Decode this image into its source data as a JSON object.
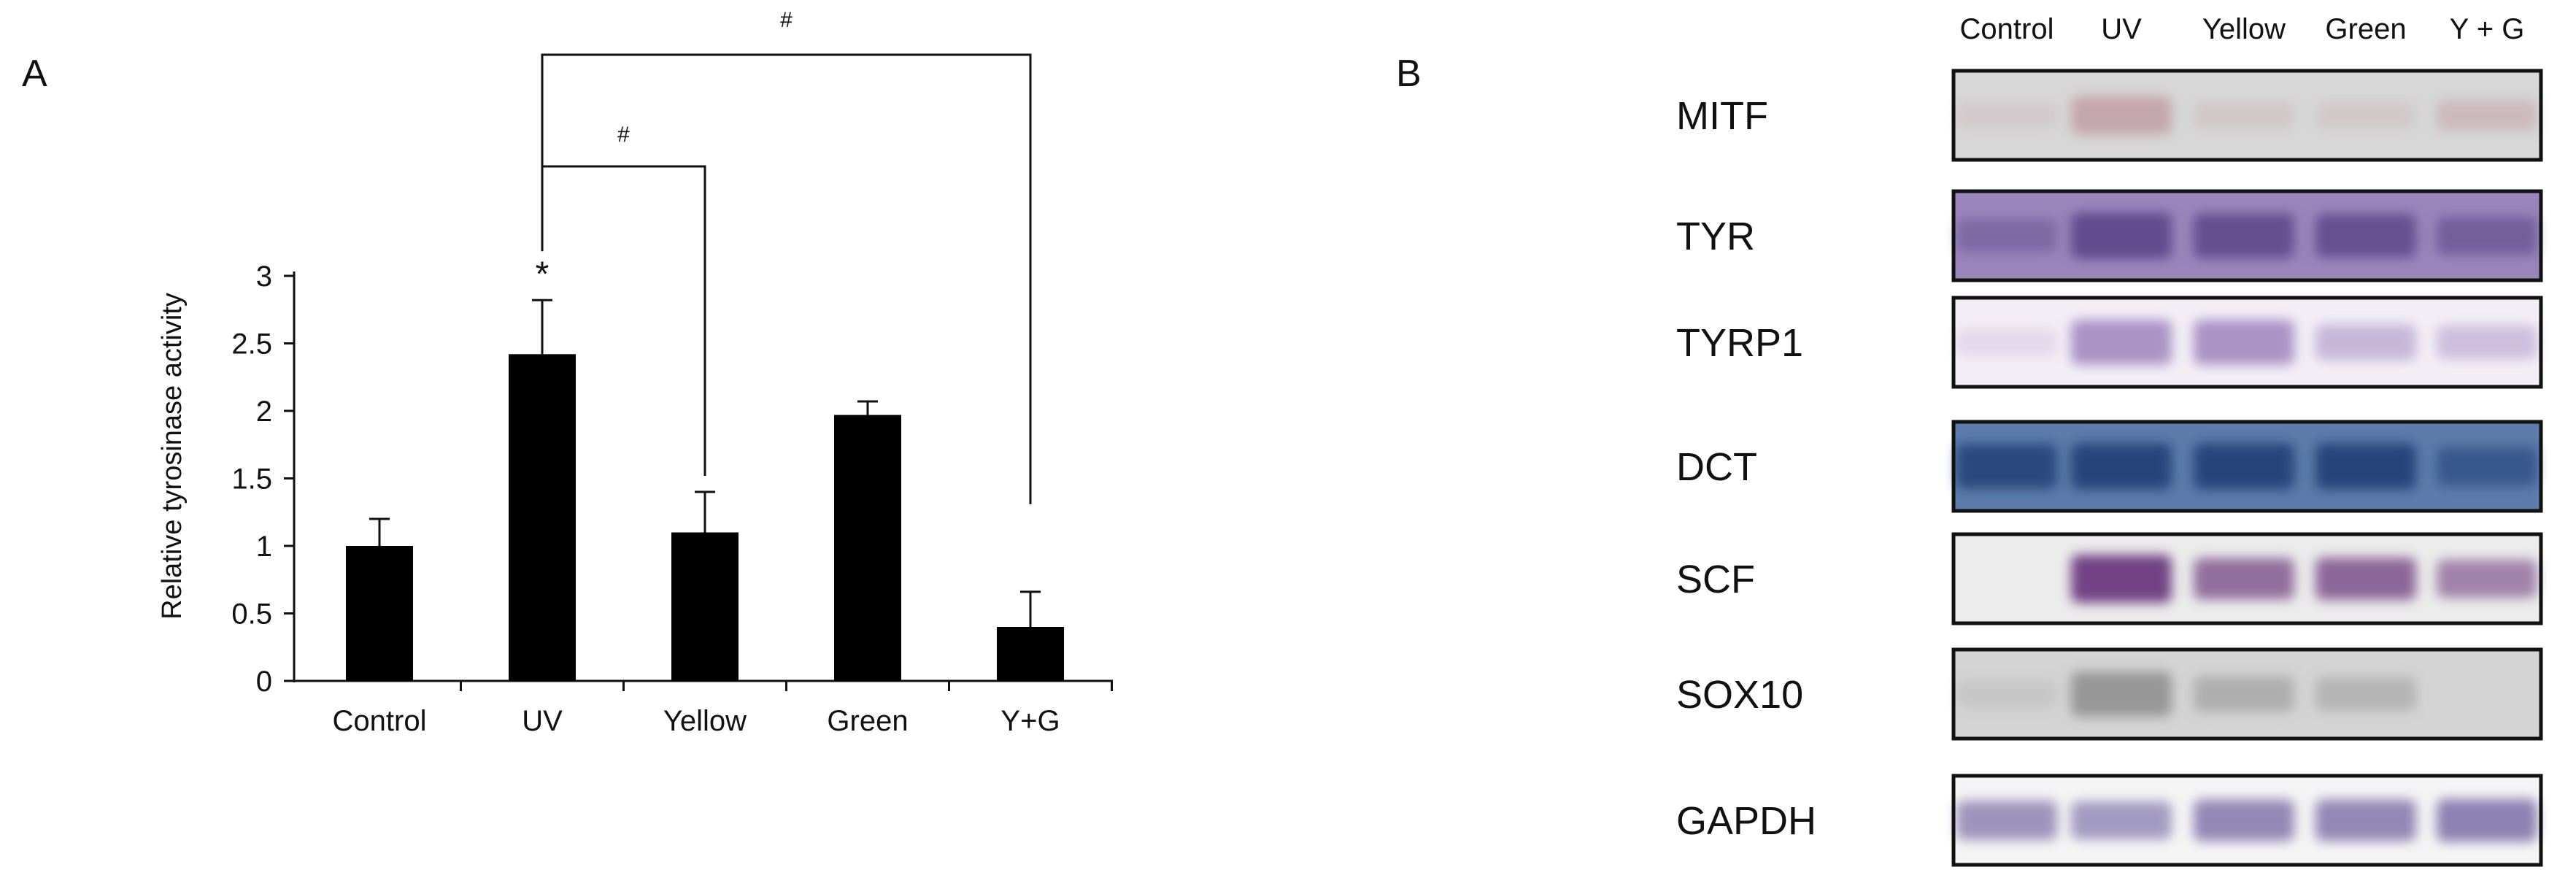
{
  "panels": {
    "a_label": "A",
    "b_label": "B"
  },
  "chart_data": {
    "type": "bar",
    "categories": [
      "Control",
      "UV",
      "Yellow",
      "Green",
      "Y+G"
    ],
    "values": [
      1.0,
      2.42,
      1.1,
      1.97,
      0.4
    ],
    "errors": [
      0.2,
      0.4,
      0.3,
      0.1,
      0.26
    ],
    "ylabel": "Relative tyrosinase activity",
    "xlabel": "",
    "ylim": [
      0,
      3
    ],
    "yticks": [
      0,
      0.5,
      1,
      1.5,
      2,
      2.5,
      3
    ],
    "ytick_labels": [
      "0",
      "0.5",
      "1",
      "1.5",
      "2",
      "2.5",
      "3"
    ],
    "grid": false,
    "bar_color": "#000000",
    "annotations": {
      "uv_marker": "*",
      "bracket_uv_yellow": "#",
      "bracket_uv_yg": "#"
    }
  },
  "blot": {
    "lanes": [
      "Control",
      "UV",
      "Yellow",
      "Green",
      "Y + G"
    ],
    "rows": [
      {
        "protein": "MITF",
        "bg": "#d7d7d7",
        "band": "#b88590",
        "intensity": [
          0.02,
          0.55,
          0.06,
          0.04,
          0.25
        ]
      },
      {
        "protein": "TYR",
        "bg": "#9a86bb",
        "band": "#584287",
        "intensity": [
          0.35,
          0.9,
          0.85,
          0.8,
          0.55
        ]
      },
      {
        "protein": "TYRP1",
        "bg": "#f3eef6",
        "band": "#9b81bc",
        "intensity": [
          0.05,
          0.85,
          0.85,
          0.45,
          0.35
        ]
      },
      {
        "protein": "DCT",
        "bg": "#5d7cab",
        "band": "#1f3d73",
        "intensity": [
          0.85,
          0.9,
          0.9,
          0.9,
          0.55
        ]
      },
      {
        "protein": "SCF",
        "bg": "#ececec",
        "band": "#6c3a7e",
        "intensity": [
          0.0,
          1.0,
          0.7,
          0.75,
          0.55
        ]
      },
      {
        "protein": "SOX10",
        "bg": "#d4d4d4",
        "band": "#8a8a8a",
        "intensity": [
          0.05,
          0.85,
          0.45,
          0.35,
          0.0
        ]
      },
      {
        "protein": "GAPDH",
        "bg": "#f5f5f5",
        "band": "#6a5c9c",
        "intensity": [
          0.6,
          0.55,
          0.7,
          0.7,
          0.75
        ]
      }
    ]
  }
}
